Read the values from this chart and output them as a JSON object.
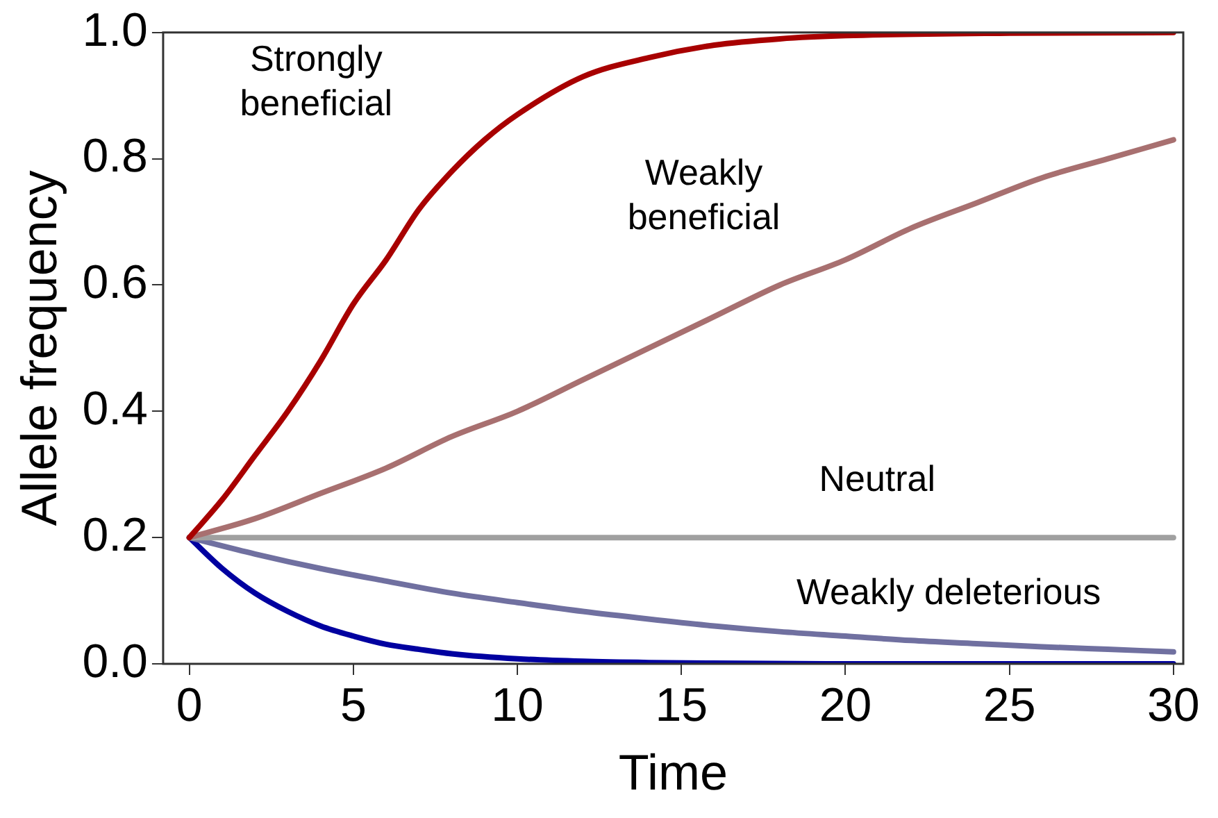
{
  "chart_data": {
    "type": "line",
    "xlabel": "Time",
    "ylabel": "Allele frequency",
    "xlim": [
      -0.8,
      30.3
    ],
    "ylim": [
      0,
      1
    ],
    "xticks": [
      0,
      5,
      10,
      15,
      20,
      25,
      30
    ],
    "yticks": [
      {
        "value": 0,
        "label": "0.0"
      },
      {
        "value": 0.2,
        "label": "0.2"
      },
      {
        "value": 0.4,
        "label": "0.4"
      },
      {
        "value": 0.6,
        "label": "0.6"
      },
      {
        "value": 0.8,
        "label": "0.8"
      },
      {
        "value": 1,
        "label": "1.0"
      }
    ],
    "grid": false,
    "legend": false,
    "marker": "none",
    "line_style": "solid",
    "series": [
      {
        "name": "Strongly beneficial",
        "color": "#a80000",
        "x": [
          0,
          1,
          2,
          3,
          4,
          5,
          6,
          7,
          8,
          9,
          10,
          12,
          14,
          16,
          18,
          20,
          25,
          30
        ],
        "values": [
          0.2,
          0.26,
          0.33,
          0.4,
          0.48,
          0.57,
          0.64,
          0.72,
          0.78,
          0.83,
          0.87,
          0.93,
          0.96,
          0.98,
          0.99,
          0.995,
          0.999,
          1.0
        ]
      },
      {
        "name": "Weakly beneficial",
        "color": "#a87070",
        "x": [
          0,
          2,
          4,
          6,
          8,
          10,
          12,
          14,
          16,
          18,
          20,
          22,
          24,
          26,
          28,
          30
        ],
        "values": [
          0.2,
          0.23,
          0.27,
          0.31,
          0.36,
          0.4,
          0.45,
          0.5,
          0.55,
          0.6,
          0.64,
          0.69,
          0.73,
          0.77,
          0.8,
          0.83
        ]
      },
      {
        "name": "Neutral",
        "color": "#a0a0a0",
        "x": [
          0,
          30
        ],
        "values": [
          0.2,
          0.2
        ]
      },
      {
        "name": "Weakly deleterious",
        "color": "#7070a0",
        "x": [
          0,
          2,
          4,
          6,
          8,
          10,
          12,
          14,
          16,
          18,
          20,
          22,
          24,
          26,
          28,
          30
        ],
        "values": [
          0.2,
          0.174,
          0.151,
          0.131,
          0.112,
          0.097,
          0.083,
          0.071,
          0.06,
          0.051,
          0.044,
          0.037,
          0.032,
          0.027,
          0.023,
          0.019
        ]
      },
      {
        "color": "#0000a0",
        "x": [
          0,
          1,
          2,
          3,
          4,
          5,
          6,
          7,
          8,
          10,
          12,
          14,
          16,
          20,
          30
        ],
        "values": [
          0.2,
          0.151,
          0.112,
          0.083,
          0.06,
          0.044,
          0.031,
          0.023,
          0.016,
          0.008,
          0.004,
          0.002,
          0.001,
          0,
          0
        ]
      }
    ]
  }
}
